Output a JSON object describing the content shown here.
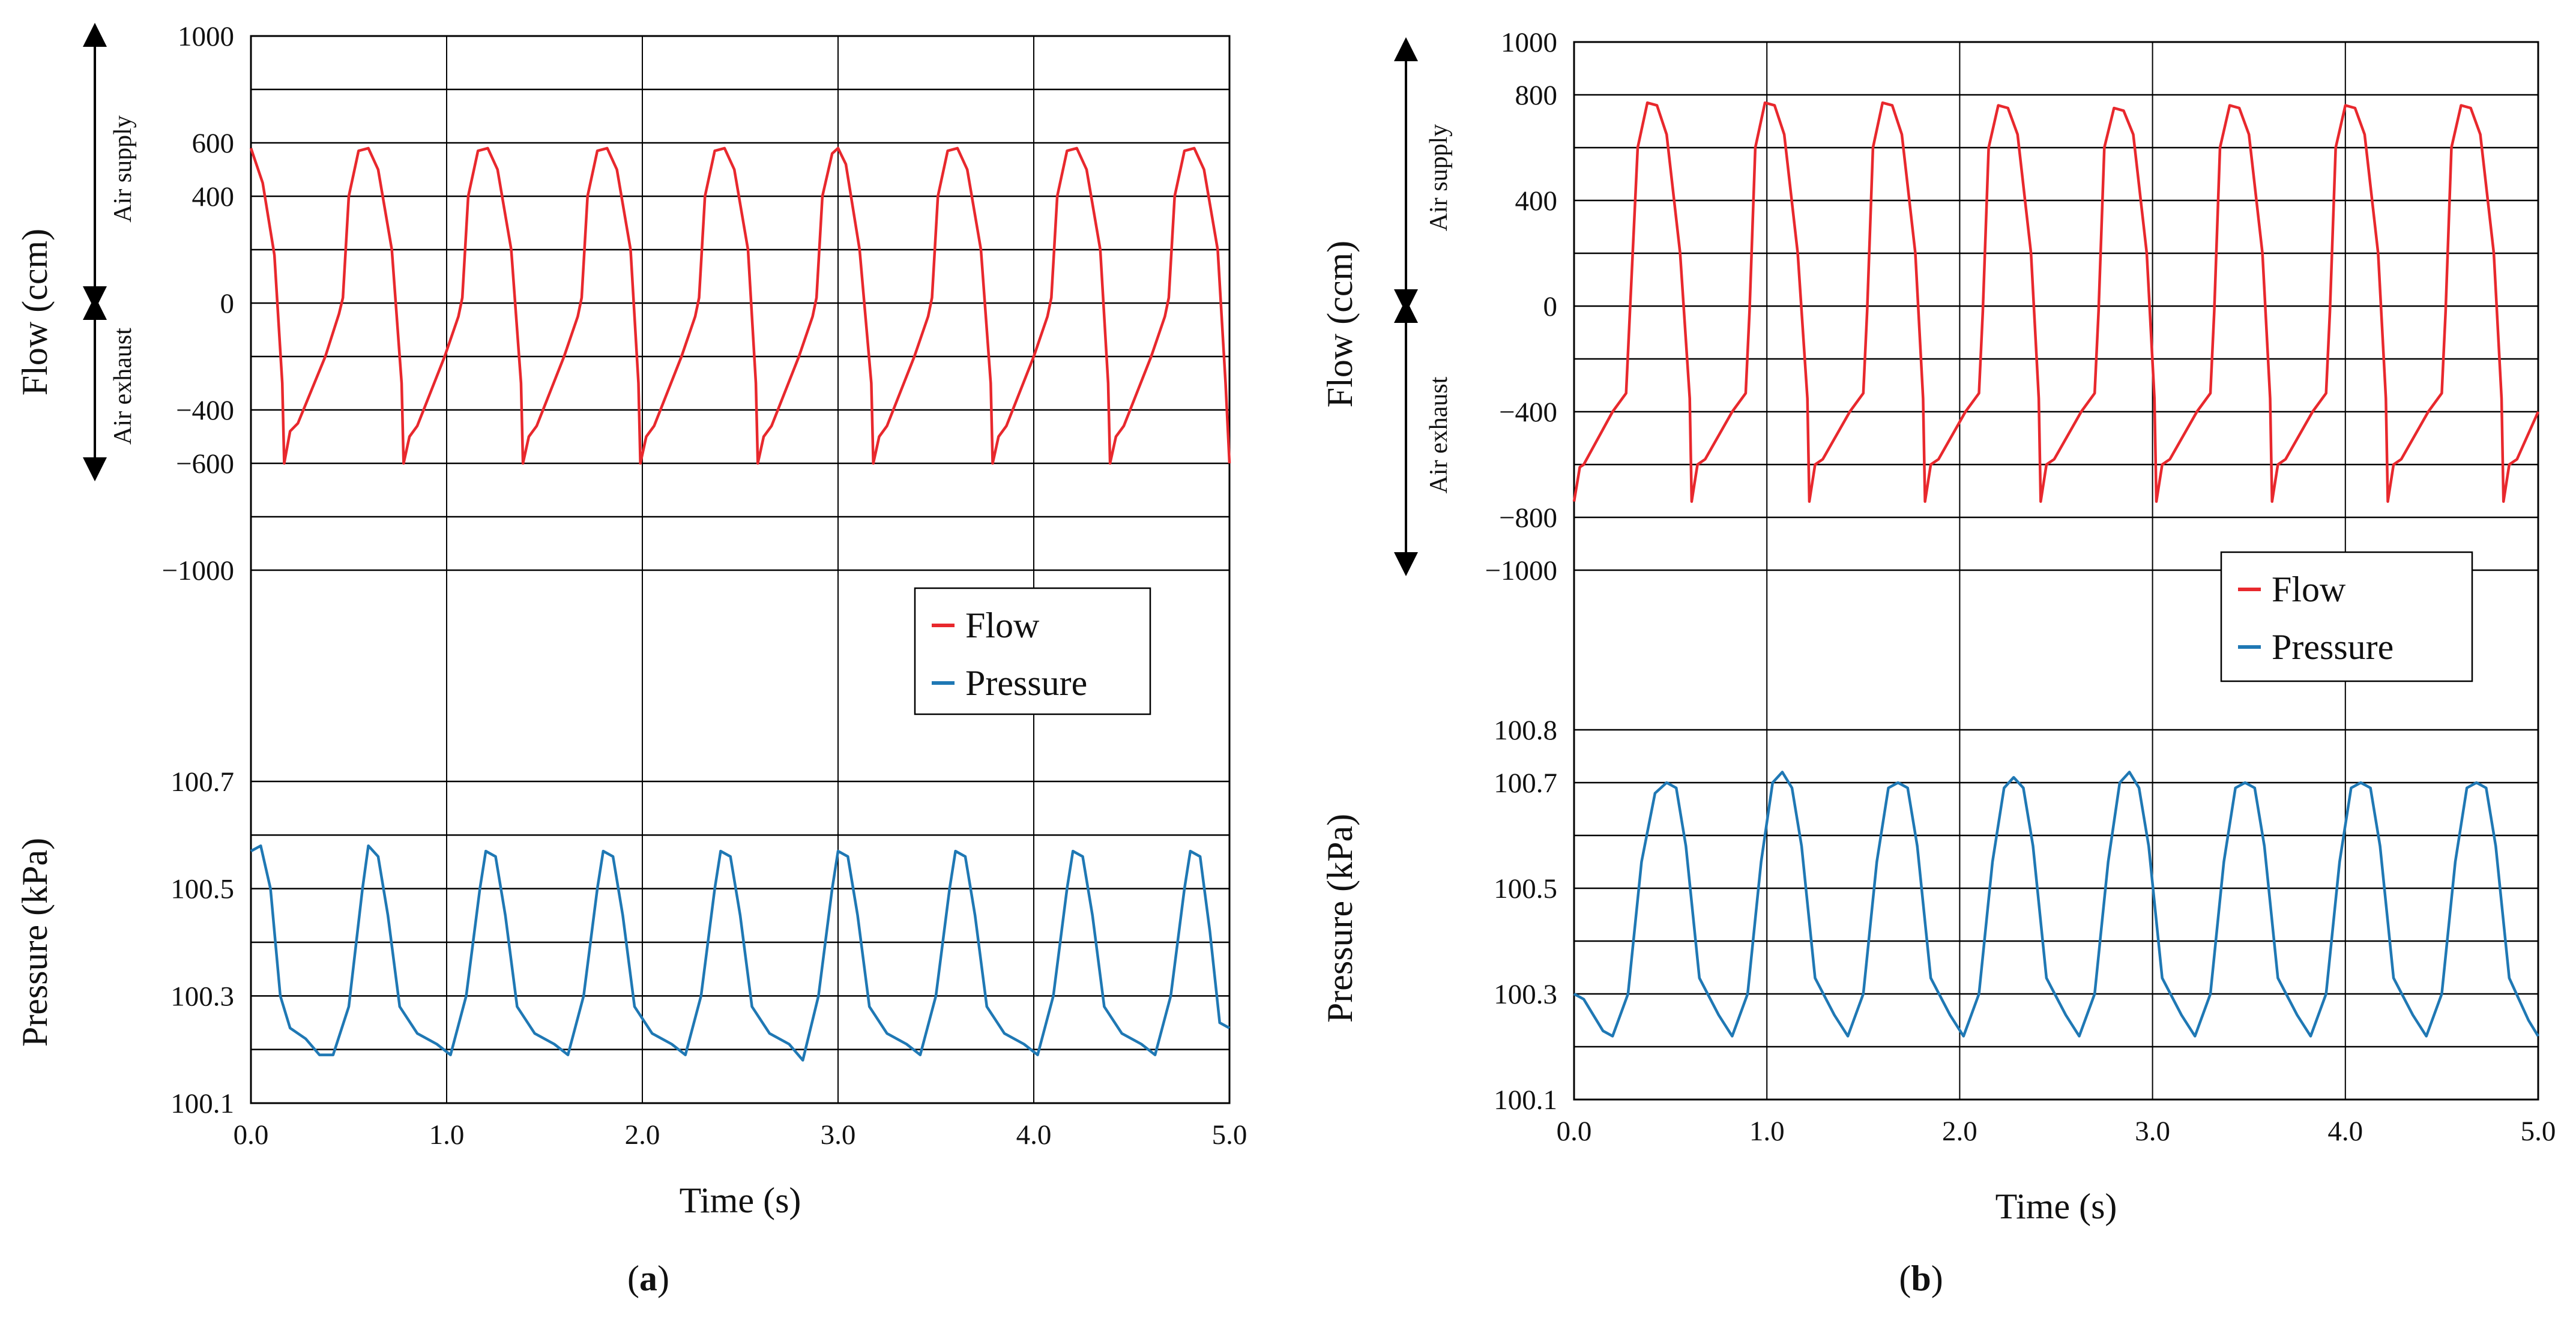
{
  "colors": {
    "flow": "#e8282d",
    "pressure": "#1f78b4",
    "grid": "#000000"
  },
  "chart_data": [
    {
      "type": "line",
      "panel_label": "a",
      "xlabel": "Time (s)",
      "xlim": [
        0,
        5
      ],
      "x_ticks": [
        "0.0",
        "1.0",
        "2.0",
        "3.0",
        "4.0",
        "5.0"
      ],
      "flow_axis": {
        "label": "Flow (ccm)",
        "ylim": [
          -1000,
          1000
        ],
        "tick_labels": [
          "1000",
          "600",
          "400",
          "0",
          "−400",
          "−600",
          "−1000"
        ],
        "supply_label": "Air supply",
        "exhaust_label": "Air exhaust"
      },
      "pressure_axis": {
        "label": "Pressure (kPa)",
        "ylim": [
          100.1,
          100.7
        ],
        "tick_labels": [
          "100.7",
          "100.5",
          "100.3",
          "100.1"
        ]
      },
      "legend": {
        "flow": "Flow",
        "pressure": "Pressure"
      },
      "series": [
        {
          "name": "Flow",
          "x": [
            0.0,
            0.06,
            0.12,
            0.16,
            0.17,
            0.2,
            0.24,
            0.38,
            0.45,
            0.47,
            0.5,
            0.55,
            0.6,
            0.65,
            0.72,
            0.77,
            0.78,
            0.81,
            0.85,
            0.99,
            1.06,
            1.08,
            1.11,
            1.16,
            1.21,
            1.26,
            1.33,
            1.38,
            1.39,
            1.42,
            1.46,
            1.6,
            1.67,
            1.69,
            1.72,
            1.77,
            1.82,
            1.87,
            1.94,
            1.98,
            1.99,
            2.02,
            2.06,
            2.2,
            2.27,
            2.29,
            2.32,
            2.37,
            2.42,
            2.47,
            2.54,
            2.58,
            2.59,
            2.62,
            2.66,
            2.8,
            2.87,
            2.89,
            2.92,
            2.97,
            3.0,
            3.04,
            3.11,
            3.17,
            3.18,
            3.21,
            3.25,
            3.39,
            3.46,
            3.48,
            3.51,
            3.56,
            3.61,
            3.66,
            3.73,
            3.78,
            3.79,
            3.82,
            3.86,
            4.0,
            4.07,
            4.09,
            4.12,
            4.17,
            4.22,
            4.27,
            4.34,
            4.38,
            4.39,
            4.42,
            4.46,
            4.6,
            4.67,
            4.69,
            4.72,
            4.77,
            4.82,
            4.87,
            4.94,
            4.98,
            5.0
          ],
          "y": [
            580,
            450,
            180,
            -300,
            -600,
            -480,
            -450,
            -200,
            -40,
            20,
            400,
            570,
            580,
            500,
            200,
            -300,
            -600,
            -500,
            -460,
            -200,
            -50,
            20,
            400,
            570,
            580,
            500,
            200,
            -300,
            -600,
            -500,
            -460,
            -200,
            -50,
            20,
            400,
            570,
            580,
            500,
            200,
            -300,
            -600,
            -500,
            -460,
            -200,
            -50,
            20,
            400,
            570,
            580,
            500,
            200,
            -300,
            -600,
            -500,
            -460,
            -200,
            -50,
            20,
            400,
            560,
            580,
            520,
            200,
            -300,
            -600,
            -500,
            -460,
            -200,
            -50,
            20,
            400,
            570,
            580,
            500,
            200,
            -300,
            -600,
            -500,
            -460,
            -200,
            -50,
            20,
            400,
            570,
            580,
            500,
            200,
            -300,
            -600,
            -500,
            -460,
            -200,
            -50,
            20,
            400,
            570,
            580,
            500,
            200,
            -300,
            -600
          ]
        },
        {
          "name": "Pressure",
          "x": [
            0.0,
            0.05,
            0.1,
            0.15,
            0.2,
            0.28,
            0.35,
            0.42,
            0.5,
            0.57,
            0.6,
            0.65,
            0.7,
            0.76,
            0.85,
            0.95,
            1.02,
            1.1,
            1.17,
            1.2,
            1.25,
            1.3,
            1.36,
            1.45,
            1.55,
            1.62,
            1.7,
            1.77,
            1.8,
            1.85,
            1.9,
            1.96,
            2.05,
            2.15,
            2.22,
            2.3,
            2.37,
            2.4,
            2.45,
            2.5,
            2.56,
            2.65,
            2.75,
            2.82,
            2.9,
            2.97,
            3.0,
            3.05,
            3.1,
            3.16,
            3.25,
            3.35,
            3.42,
            3.5,
            3.57,
            3.6,
            3.65,
            3.7,
            3.76,
            3.85,
            3.95,
            4.02,
            4.1,
            4.17,
            4.2,
            4.25,
            4.3,
            4.36,
            4.45,
            4.55,
            4.62,
            4.7,
            4.77,
            4.8,
            4.85,
            4.9,
            4.95,
            5.0
          ],
          "y": [
            100.57,
            100.58,
            100.5,
            100.3,
            100.24,
            100.22,
            100.19,
            100.19,
            100.28,
            100.5,
            100.58,
            100.56,
            100.45,
            100.28,
            100.23,
            100.21,
            100.19,
            100.3,
            100.5,
            100.57,
            100.56,
            100.45,
            100.28,
            100.23,
            100.21,
            100.19,
            100.3,
            100.5,
            100.57,
            100.56,
            100.45,
            100.28,
            100.23,
            100.21,
            100.19,
            100.3,
            100.5,
            100.57,
            100.56,
            100.45,
            100.28,
            100.23,
            100.21,
            100.18,
            100.3,
            100.5,
            100.57,
            100.56,
            100.45,
            100.28,
            100.23,
            100.21,
            100.19,
            100.3,
            100.5,
            100.57,
            100.56,
            100.45,
            100.28,
            100.23,
            100.21,
            100.19,
            100.3,
            100.5,
            100.57,
            100.56,
            100.45,
            100.28,
            100.23,
            100.21,
            100.19,
            100.3,
            100.5,
            100.57,
            100.56,
            100.42,
            100.25,
            100.24
          ]
        }
      ]
    },
    {
      "type": "line",
      "panel_label": "b",
      "xlabel": "Time (s)",
      "xlim": [
        0,
        5
      ],
      "x_ticks": [
        "0.0",
        "1.0",
        "2.0",
        "3.0",
        "4.0",
        "5.0"
      ],
      "flow_axis": {
        "label": "Flow (ccm)",
        "ylim": [
          -1000,
          1000
        ],
        "tick_labels": [
          "1000",
          "800",
          "400",
          "0",
          "−400",
          "−800",
          "−1000"
        ],
        "supply_label": "Air supply",
        "exhaust_label": "Air exhaust"
      },
      "pressure_axis": {
        "label": "Pressure (kPa)",
        "ylim": [
          100.1,
          100.8
        ],
        "tick_labels": [
          "100.8",
          "100.7",
          "100.5",
          "100.3",
          "100.1"
        ]
      },
      "legend": {
        "flow": "Flow",
        "pressure": "Pressure"
      },
      "series": [
        {
          "name": "Flow",
          "x": [
            0.0,
            0.03,
            0.05,
            0.2,
            0.27,
            0.29,
            0.33,
            0.38,
            0.43,
            0.48,
            0.55,
            0.6,
            0.61,
            0.64,
            0.68,
            0.82,
            0.89,
            0.91,
            0.94,
            0.99,
            1.04,
            1.09,
            1.16,
            1.21,
            1.22,
            1.25,
            1.29,
            1.43,
            1.5,
            1.52,
            1.55,
            1.6,
            1.65,
            1.7,
            1.77,
            1.81,
            1.82,
            1.85,
            1.89,
            2.03,
            2.1,
            2.12,
            2.15,
            2.2,
            2.25,
            2.3,
            2.37,
            2.41,
            2.42,
            2.45,
            2.49,
            2.63,
            2.7,
            2.72,
            2.75,
            2.8,
            2.85,
            2.9,
            2.97,
            3.01,
            3.02,
            3.05,
            3.09,
            3.23,
            3.3,
            3.32,
            3.35,
            3.4,
            3.45,
            3.5,
            3.57,
            3.61,
            3.62,
            3.65,
            3.69,
            3.83,
            3.9,
            3.92,
            3.95,
            4.0,
            4.05,
            4.1,
            4.17,
            4.21,
            4.22,
            4.25,
            4.29,
            4.43,
            4.5,
            4.52,
            4.55,
            4.6,
            4.65,
            4.7,
            4.77,
            4.81,
            4.82,
            4.85,
            4.89,
            5.0
          ],
          "y": [
            -740,
            -610,
            -600,
            -400,
            -330,
            -20,
            600,
            770,
            760,
            650,
            200,
            -350,
            -740,
            -600,
            -580,
            -400,
            -330,
            -20,
            600,
            770,
            760,
            650,
            200,
            -350,
            -740,
            -600,
            -580,
            -400,
            -330,
            -20,
            600,
            770,
            760,
            650,
            200,
            -350,
            -740,
            -600,
            -580,
            -400,
            -330,
            -20,
            600,
            760,
            750,
            650,
            200,
            -350,
            -740,
            -600,
            -580,
            -400,
            -330,
            -20,
            600,
            750,
            740,
            650,
            200,
            -350,
            -740,
            -600,
            -580,
            -400,
            -330,
            -20,
            600,
            760,
            750,
            650,
            200,
            -350,
            -740,
            -600,
            -580,
            -400,
            -330,
            -20,
            600,
            760,
            750,
            650,
            200,
            -350,
            -740,
            -600,
            -580,
            -400,
            -330,
            -20,
            600,
            760,
            750,
            650,
            200,
            -350,
            -740,
            -600,
            -580,
            -400
          ]
        },
        {
          "name": "Pressure",
          "x": [
            0.0,
            0.05,
            0.1,
            0.15,
            0.2,
            0.28,
            0.35,
            0.42,
            0.48,
            0.53,
            0.58,
            0.65,
            0.75,
            0.82,
            0.9,
            0.97,
            1.03,
            1.08,
            1.13,
            1.18,
            1.25,
            1.35,
            1.42,
            1.5,
            1.57,
            1.63,
            1.68,
            1.73,
            1.78,
            1.85,
            1.95,
            2.02,
            2.1,
            2.17,
            2.23,
            2.28,
            2.33,
            2.38,
            2.45,
            2.55,
            2.62,
            2.7,
            2.77,
            2.83,
            2.88,
            2.93,
            2.98,
            3.05,
            3.15,
            3.22,
            3.3,
            3.37,
            3.43,
            3.48,
            3.53,
            3.58,
            3.65,
            3.75,
            3.82,
            3.9,
            3.97,
            4.03,
            4.08,
            4.13,
            4.18,
            4.25,
            4.35,
            4.42,
            4.5,
            4.57,
            4.63,
            4.68,
            4.73,
            4.78,
            4.85,
            4.95,
            5.0
          ],
          "y": [
            100.3,
            100.29,
            100.26,
            100.23,
            100.22,
            100.3,
            100.55,
            100.68,
            100.7,
            100.69,
            100.58,
            100.33,
            100.26,
            100.22,
            100.3,
            100.55,
            100.7,
            100.72,
            100.69,
            100.58,
            100.33,
            100.26,
            100.22,
            100.3,
            100.55,
            100.69,
            100.7,
            100.69,
            100.58,
            100.33,
            100.26,
            100.22,
            100.3,
            100.55,
            100.69,
            100.71,
            100.69,
            100.58,
            100.33,
            100.26,
            100.22,
            100.3,
            100.55,
            100.7,
            100.72,
            100.69,
            100.58,
            100.33,
            100.26,
            100.22,
            100.3,
            100.55,
            100.69,
            100.7,
            100.69,
            100.58,
            100.33,
            100.26,
            100.22,
            100.3,
            100.55,
            100.69,
            100.7,
            100.69,
            100.58,
            100.33,
            100.26,
            100.22,
            100.3,
            100.55,
            100.69,
            100.7,
            100.69,
            100.58,
            100.33,
            100.25,
            100.22
          ]
        }
      ]
    }
  ]
}
